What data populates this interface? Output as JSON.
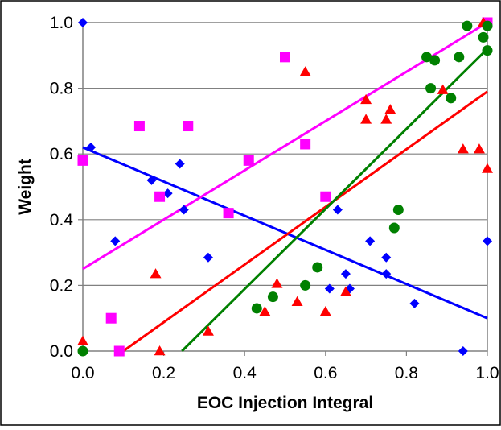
{
  "chart_data": {
    "type": "scatter",
    "title": "",
    "xlabel": "EOC Injection Integral",
    "ylabel": "Weight",
    "xlim": [
      0,
      1
    ],
    "ylim": [
      0,
      1
    ],
    "x_ticks": [
      "0.0",
      "0.2",
      "0.4",
      "0.6",
      "0.8",
      "1.0"
    ],
    "y_ticks": [
      "0.0",
      "0.2",
      "0.4",
      "0.6",
      "0.8",
      "1.0"
    ],
    "grid": "horizontal",
    "legend": "none",
    "series": [
      {
        "marker": "diamond",
        "color": "#0000ff",
        "points": [
          [
            0.0,
            1.0
          ],
          [
            0.02,
            0.62
          ],
          [
            0.08,
            0.335
          ],
          [
            0.17,
            0.52
          ],
          [
            0.21,
            0.48
          ],
          [
            0.24,
            0.57
          ],
          [
            0.25,
            0.43
          ],
          [
            0.31,
            0.285
          ],
          [
            0.61,
            0.19
          ],
          [
            0.63,
            0.43
          ],
          [
            0.65,
            0.235
          ],
          [
            0.66,
            0.19
          ],
          [
            0.71,
            0.335
          ],
          [
            0.75,
            0.285
          ],
          [
            0.75,
            0.235
          ],
          [
            0.82,
            0.145
          ],
          [
            0.94,
            0.0
          ],
          [
            1.0,
            0.335
          ]
        ],
        "trend": [
          [
            0.0,
            0.62
          ],
          [
            1.0,
            0.1
          ]
        ]
      },
      {
        "marker": "square",
        "color": "#ff00ff",
        "points": [
          [
            0.0,
            0.58
          ],
          [
            0.07,
            0.1
          ],
          [
            0.09,
            0.0
          ],
          [
            0.14,
            0.685
          ],
          [
            0.19,
            0.47
          ],
          [
            0.26,
            0.685
          ],
          [
            0.36,
            0.42
          ],
          [
            0.41,
            0.58
          ],
          [
            0.5,
            0.895
          ],
          [
            0.55,
            0.63
          ],
          [
            0.6,
            0.47
          ],
          [
            1.0,
            1.0
          ]
        ],
        "trend": [
          [
            0.0,
            0.25
          ],
          [
            1.0,
            1.0
          ]
        ]
      },
      {
        "marker": "triangle",
        "color": "#ff0000",
        "points": [
          [
            0.0,
            0.03
          ],
          [
            0.18,
            0.235
          ],
          [
            0.19,
            0.0
          ],
          [
            0.31,
            0.06
          ],
          [
            0.45,
            0.12
          ],
          [
            0.48,
            0.205
          ],
          [
            0.53,
            0.15
          ],
          [
            0.55,
            0.85
          ],
          [
            0.6,
            0.12
          ],
          [
            0.65,
            0.18
          ],
          [
            0.7,
            0.705
          ],
          [
            0.7,
            0.765
          ],
          [
            0.75,
            0.705
          ],
          [
            0.76,
            0.735
          ],
          [
            0.89,
            0.795
          ],
          [
            0.94,
            0.615
          ],
          [
            0.98,
            0.615
          ],
          [
            0.99,
            1.0
          ],
          [
            1.0,
            0.555
          ]
        ],
        "trend": [
          [
            0.1,
            0.0
          ],
          [
            1.0,
            0.79
          ]
        ]
      },
      {
        "marker": "circle",
        "color": "#008000",
        "points": [
          [
            0.0,
            0.0
          ],
          [
            0.43,
            0.13
          ],
          [
            0.47,
            0.165
          ],
          [
            0.55,
            0.2
          ],
          [
            0.58,
            0.255
          ],
          [
            0.77,
            0.375
          ],
          [
            0.78,
            0.43
          ],
          [
            0.85,
            0.895
          ],
          [
            0.86,
            0.8
          ],
          [
            0.87,
            0.885
          ],
          [
            0.91,
            0.77
          ],
          [
            0.93,
            0.895
          ],
          [
            0.95,
            0.99
          ],
          [
            0.99,
            0.955
          ],
          [
            1.0,
            0.99
          ],
          [
            1.0,
            0.915
          ]
        ],
        "trend": [
          [
            0.245,
            0.0
          ],
          [
            1.0,
            0.92
          ]
        ]
      }
    ]
  }
}
